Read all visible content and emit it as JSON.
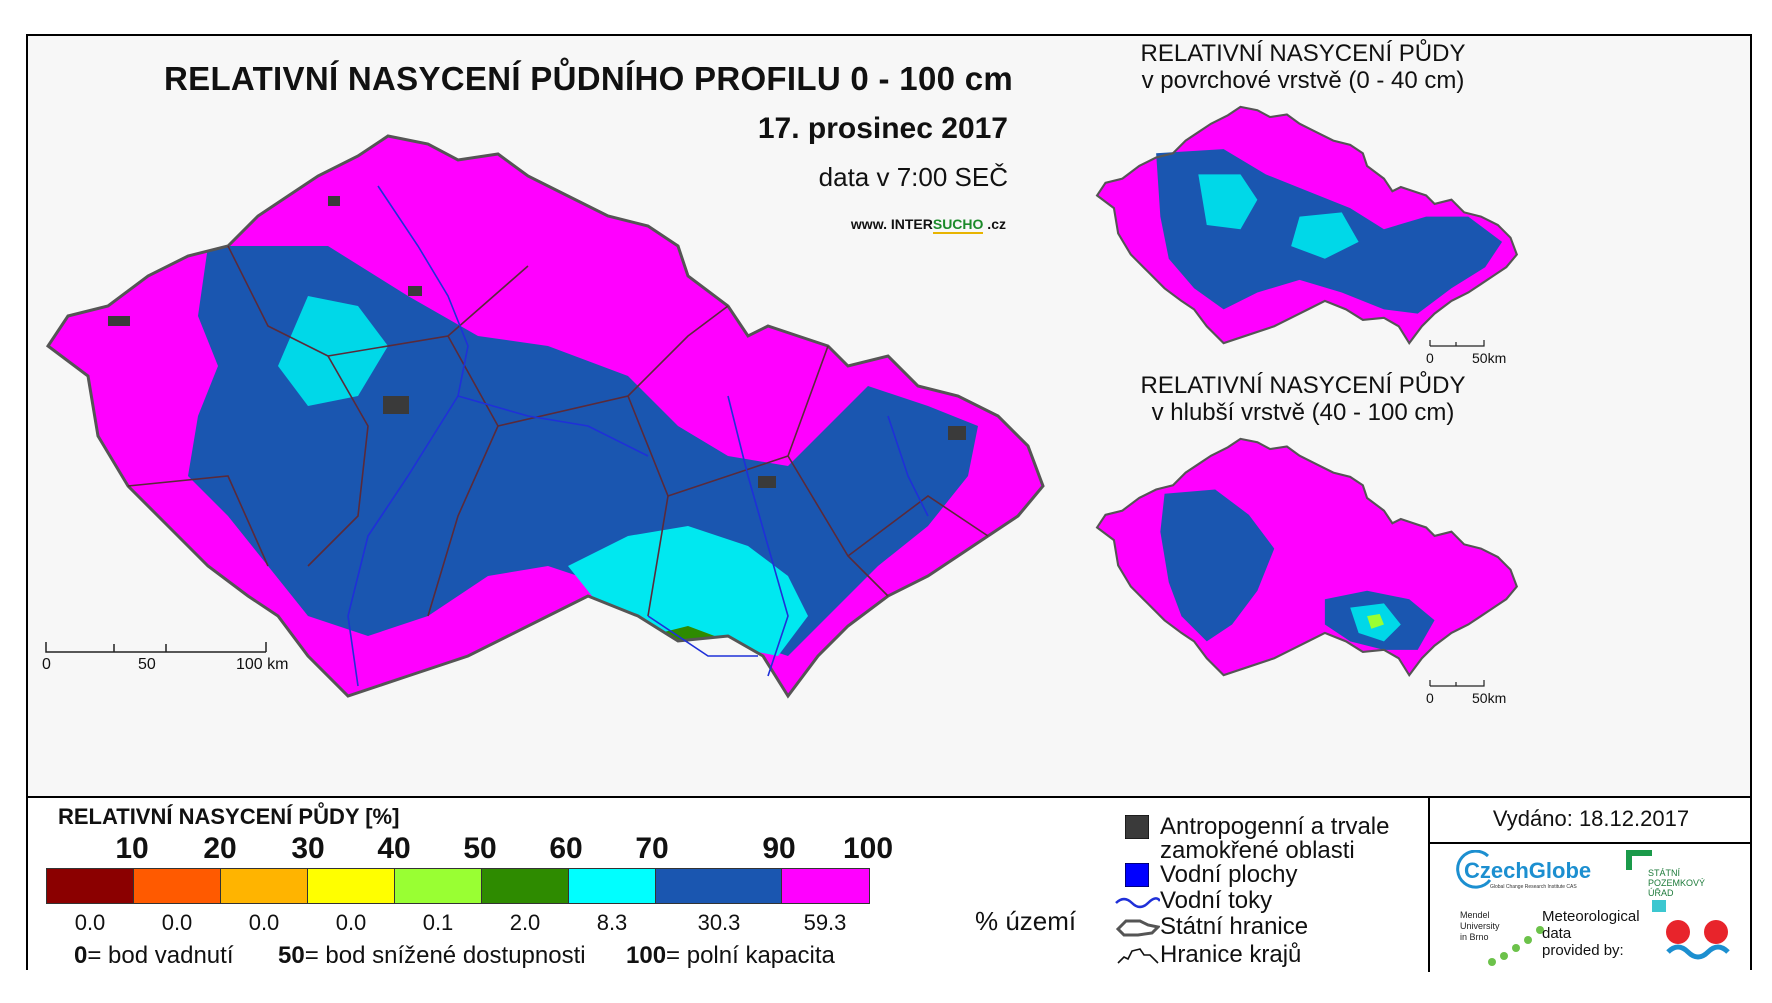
{
  "header": {
    "title": "RELATIVNÍ NASYCENÍ PŮDNÍHO PROFILU 0 - 100 cm",
    "date": "17. prosinec 2017",
    "time": "data v 7:00 SEČ",
    "web_prefix": "www. INTER",
    "web_highlight": "SUCHO",
    "web_suffix": " .cz"
  },
  "insets": [
    {
      "title_line1": "RELATIVNÍ NASYCENÍ PŮDY",
      "title_line2": "v povrchové vrstvě (0 - 40 cm)"
    },
    {
      "title_line1": "RELATIVNÍ NASYCENÍ PŮDY",
      "title_line2": "v hlubší vrstvě (40 - 100 cm)"
    }
  ],
  "main_scalebar": {
    "zero": "0",
    "mid": "50",
    "end": "100 km"
  },
  "inset_scalebar": {
    "zero": "0",
    "end": "50km"
  },
  "legend": {
    "title": "RELATIVNÍ NASYCENÍ PŮDY [%]",
    "ticks": [
      "10",
      "20",
      "30",
      "40",
      "50",
      "60",
      "70",
      "90",
      "100"
    ],
    "classes": [
      {
        "color": "#8b0000",
        "share": "0.0"
      },
      {
        "color": "#ff5a00",
        "share": "0.0"
      },
      {
        "color": "#ffb400",
        "share": "0.0"
      },
      {
        "color": "#ffff00",
        "share": "0.0"
      },
      {
        "color": "#99ff33",
        "share": "0.1"
      },
      {
        "color": "#2e8b00",
        "share": "2.0"
      },
      {
        "color": "#00ffff",
        "share": "8.3"
      },
      {
        "color": "#1a56b0",
        "share": "30.3"
      },
      {
        "color": "#ff00ff",
        "share": "59.3"
      }
    ],
    "share_unit": "% území",
    "definitions": [
      {
        "value": "0",
        "text": "= bod vadnutí"
      },
      {
        "value": "50",
        "text": "= bod snížené dostupnosti"
      },
      {
        "value": "100",
        "text": "= polní kapacita"
      }
    ]
  },
  "symbols": {
    "anthropogenic_line1": "Antropogenní a trvale",
    "anthropogenic_line2": "zamokřené oblasti",
    "water_bodies": "Vodní plochy",
    "rivers": "Vodní toky",
    "state_border": "Státní hranice",
    "region_border": "Hranice krajů"
  },
  "credits": {
    "issued": "Vydáno: 18.12.2017",
    "czechglobe": "CzechGlobe",
    "czechglobe_sub": "Global Change Research Institute CAS",
    "spu_line1": "STÁTNÍ",
    "spu_line2": "POZEMKOVÝ",
    "spu_line3": "ÚŘAD",
    "mendel_line1": "Mendel",
    "mendel_line2": "University",
    "mendel_line3": "in Brno",
    "meteo_line1": "Meteorological",
    "meteo_line2": "data",
    "meteo_line3": "provided by:"
  }
}
